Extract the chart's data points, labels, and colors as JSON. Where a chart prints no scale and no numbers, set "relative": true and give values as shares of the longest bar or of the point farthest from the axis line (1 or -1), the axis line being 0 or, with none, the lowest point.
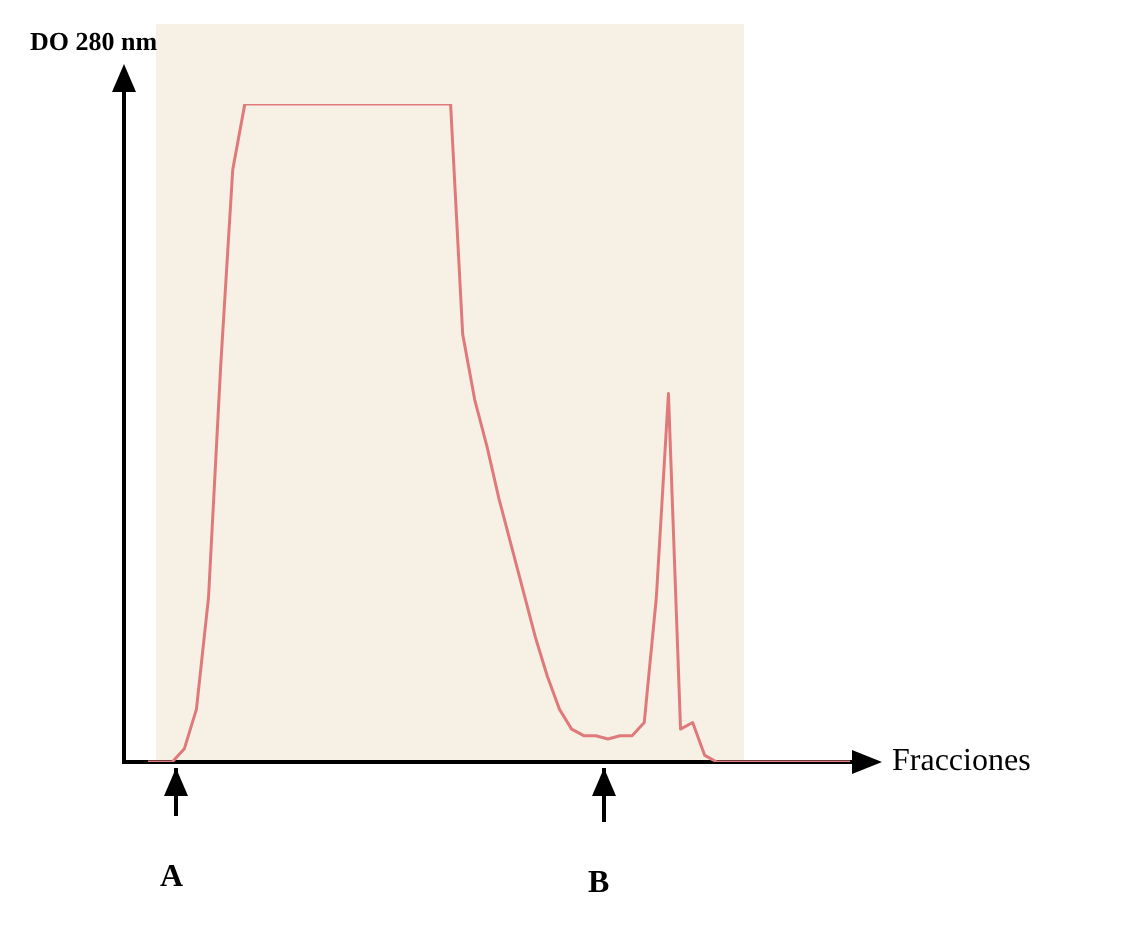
{
  "chart_data": {
    "type": "line",
    "relative": true,
    "ylabel": "DO 280 nm",
    "xlabel": "Fracciones",
    "annotations": [
      "A",
      "B"
    ],
    "color": "#e07a7a",
    "marker": "none",
    "categories": [
      null,
      null,
      null,
      null,
      null,
      null,
      null,
      null,
      null,
      null,
      null,
      null,
      null,
      null,
      null,
      null,
      null,
      null,
      null,
      null,
      null,
      null,
      null,
      null,
      null,
      null,
      null,
      null,
      null,
      null,
      null,
      null,
      null,
      null,
      null,
      null,
      null,
      null,
      null,
      null,
      null,
      null,
      null,
      null,
      null,
      null,
      null,
      null,
      null,
      null,
      null,
      null,
      null,
      null,
      null,
      null,
      null,
      null,
      null
    ],
    "values": [
      0,
      0,
      0,
      0.02,
      0.08,
      0.25,
      0.6,
      0.9,
      1,
      1,
      1,
      1,
      1,
      1,
      1,
      1,
      1,
      1,
      1,
      1,
      1,
      1,
      1,
      1,
      1,
      1,
      0.65,
      0.55,
      0.48,
      0.4,
      0.33,
      0.26,
      0.19,
      0.13,
      0.08,
      0.05,
      0.04,
      0.04,
      0.035,
      0.04,
      0.04,
      0.06,
      0.25,
      0.56,
      0.05,
      0.06,
      0.01,
      0,
      0,
      0,
      0,
      0,
      0,
      0,
      0,
      0,
      0,
      0,
      0
    ]
  }
}
